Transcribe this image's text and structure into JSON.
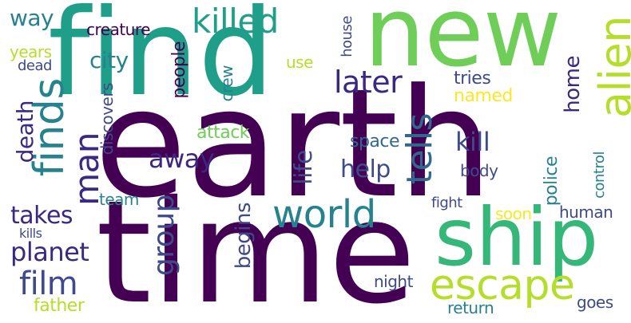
{
  "colors": {
    "dark_purple": "#440154",
    "indigo": "#3b2883",
    "slate_blue": "#3e4a89",
    "steel_blue": "#31688e",
    "teal": "#26828e",
    "teal_green": "#1f9e89",
    "green": "#35b779",
    "lime": "#6ece58",
    "yellow_green": "#b5de2b",
    "yellow": "#fde725"
  },
  "words": {
    "earth": "earth",
    "time": "time",
    "find": "find",
    "new": "new",
    "ship": "ship",
    "escape": "escape",
    "world": "world",
    "alien": "alien",
    "finds": "finds",
    "killed": "killed",
    "later": "later",
    "man": "man",
    "film": "film",
    "takes": "takes",
    "planet": "planet",
    "tells": "tells",
    "group": "group",
    "city": "city",
    "life": "life",
    "kill": "kill",
    "help": "help",
    "away": "away",
    "death": "death",
    "home": "home",
    "way": "way",
    "begins": "begins",
    "creature": "creature",
    "years": "years",
    "dead": "dead",
    "people": "people",
    "crew": "crew",
    "use": "use",
    "house": "house",
    "discovers": "discovers",
    "tries": "tries",
    "named": "named",
    "attack": "attack",
    "space": "space",
    "body": "body",
    "police": "police",
    "control": "control",
    "team": "team",
    "fight": "fight",
    "soon": "soon",
    "human": "human",
    "kills": "kills",
    "night": "night",
    "return": "return",
    "father": "father",
    "goes": "goes"
  }
}
